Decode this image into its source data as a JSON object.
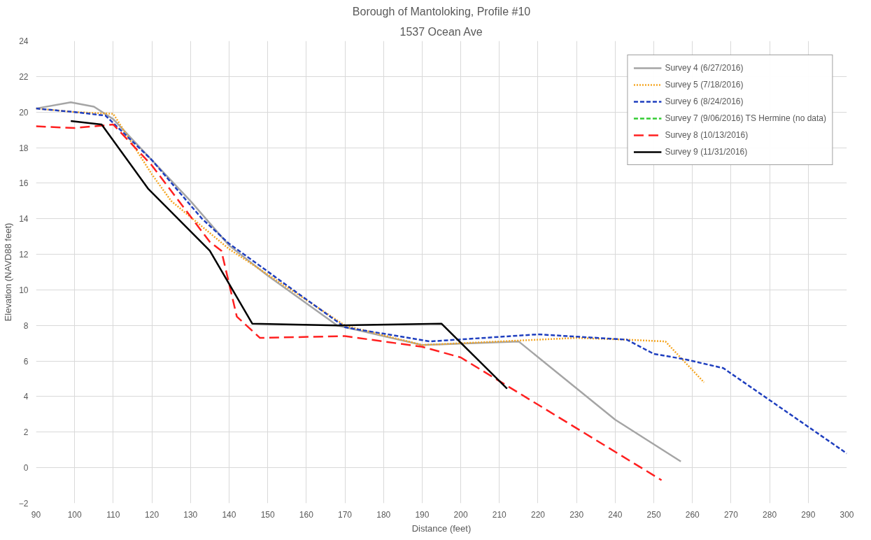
{
  "chart_data": {
    "type": "line",
    "title": "Borough of Mantoloking, Profile #10",
    "subtitle": "1537 Ocean Ave",
    "xlabel": "Distance (feet)",
    "ylabel": "Elevation (NAVD88 feet)",
    "xlim": [
      90,
      300
    ],
    "xticks": [
      90,
      100,
      110,
      120,
      130,
      140,
      150,
      160,
      170,
      180,
      190,
      200,
      210,
      220,
      230,
      240,
      250,
      260,
      270,
      280,
      290,
      300
    ],
    "ylim": [
      -2,
      24
    ],
    "yticks": [
      -2,
      0,
      2,
      4,
      6,
      8,
      10,
      12,
      14,
      16,
      18,
      20,
      22,
      24
    ],
    "grid": true,
    "legend": "top right",
    "marker": "none",
    "series": [
      {
        "name": "Survey 4 (6/27/2016)",
        "color": "#a5a5a5",
        "line_style": "solid",
        "x": [
          90,
          99,
          105,
          110,
          130,
          140,
          150,
          168,
          190,
          215,
          240,
          257
        ],
        "values": [
          20.2,
          20.55,
          20.3,
          19.6,
          15,
          12.5,
          10.8,
          8,
          6.9,
          7.1,
          2.7,
          0.35
        ]
      },
      {
        "name": "Survey 5 (7/18/2016)",
        "color": "#f5a623",
        "line_style": "dotted",
        "x": [
          90,
          100,
          110,
          120,
          125,
          140,
          170,
          190,
          220,
          230,
          243,
          253,
          263
        ],
        "values": [
          20.2,
          20,
          19.9,
          16.5,
          15,
          12.3,
          8,
          6.9,
          7.2,
          7.3,
          7.2,
          7.1,
          4.8
        ]
      },
      {
        "name": "Survey 6 (8/24/2016)",
        "color": "#1f3fbf",
        "line_style": "dashed",
        "x": [
          90,
          100,
          108,
          120,
          133,
          140,
          170,
          192,
          220,
          243,
          250,
          258,
          268,
          300
        ],
        "values": [
          20.2,
          20,
          19.8,
          17.3,
          14,
          12.6,
          7.9,
          7.1,
          7.5,
          7.2,
          6.4,
          6.1,
          5.6,
          0.8
        ]
      },
      {
        "name": "Survey 7 (9/06/2016) TS Hermine (no data)",
        "color": "#33cc33",
        "line_style": "dashed"
      },
      {
        "name": "Survey 8 (10/13/2016)",
        "color": "#ff2020",
        "line_style": "dashed",
        "x": [
          90,
          100,
          110,
          120,
          135,
          138,
          142,
          148,
          170,
          190,
          200,
          252
        ],
        "values": [
          19.2,
          19.1,
          19.3,
          17,
          12.7,
          12.2,
          8.5,
          7.3,
          7.4,
          6.8,
          6.2,
          -0.7
        ]
      },
      {
        "name": "Survey 9 (11/31/2016)",
        "color": "#000000",
        "line_style": "solid",
        "x": [
          99,
          107,
          119,
          135,
          146,
          168,
          195,
          212
        ],
        "values": [
          19.5,
          19.3,
          15.7,
          12.2,
          8.1,
          8,
          8.1,
          4.45
        ]
      }
    ]
  }
}
